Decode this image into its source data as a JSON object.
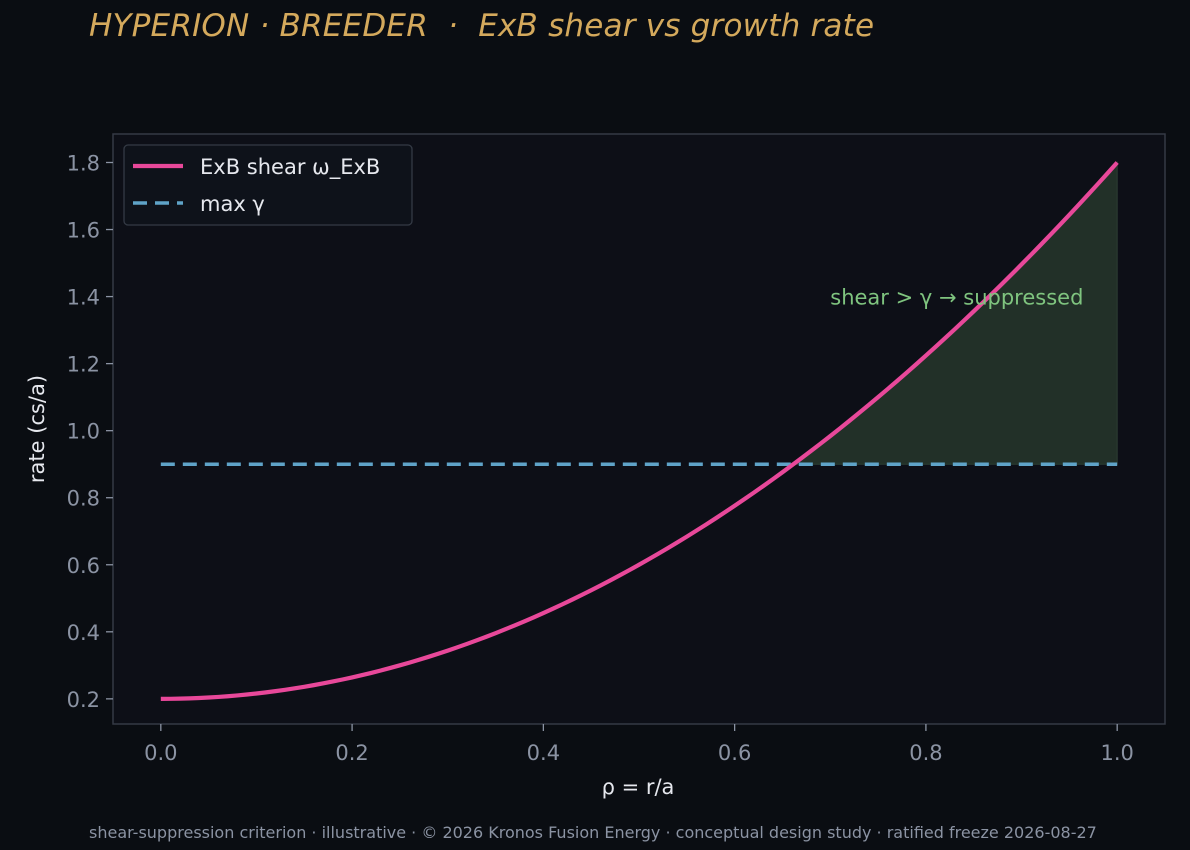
{
  "title": "HYPERION · BREEDER  ·  ExB shear vs growth rate",
  "footer": "shear-suppression criterion · illustrative · © 2026 Kronos Fusion Energy · conceptual design study · ratified freeze 2026-08-27",
  "chart_data": {
    "type": "line",
    "xlabel": "ρ = r/a",
    "ylabel": "rate  (cs/a)",
    "xlim": [
      -0.05,
      1.05
    ],
    "ylim": [
      0.125,
      1.885
    ],
    "xticks": [
      0.0,
      0.2,
      0.4,
      0.6,
      0.8,
      1.0
    ],
    "xtick_labels": [
      "0.0",
      "0.2",
      "0.4",
      "0.6",
      "0.8",
      "1.0"
    ],
    "yticks": [
      0.2,
      0.4,
      0.6,
      0.8,
      1.0,
      1.2,
      1.4,
      1.6,
      1.8
    ],
    "ytick_labels": [
      "0.2",
      "0.4",
      "0.6",
      "0.8",
      "1.0",
      "1.2",
      "1.4",
      "1.6",
      "1.8"
    ],
    "grid": false,
    "legend_position": "top-left",
    "series": [
      {
        "name": "ExB shear ω_ExB",
        "color": "#e8489a",
        "style": "solid",
        "x": [
          0.0,
          0.05,
          0.1,
          0.15,
          0.2,
          0.25,
          0.3,
          0.35,
          0.4,
          0.45,
          0.5,
          0.55,
          0.6,
          0.65,
          0.7,
          0.75,
          0.8,
          0.85,
          0.9,
          0.95,
          1.0
        ],
        "y": [
          0.2,
          0.204,
          0.216,
          0.236,
          0.264,
          0.3,
          0.344,
          0.396,
          0.456,
          0.524,
          0.6,
          0.684,
          0.776,
          0.876,
          0.984,
          1.1,
          1.224,
          1.356,
          1.496,
          1.644,
          1.8
        ]
      },
      {
        "name": "max γ",
        "color": "#5fa3c8",
        "style": "dashed",
        "x": [
          0.0,
          1.0
        ],
        "y": [
          0.9,
          0.9
        ]
      }
    ],
    "fill_region": {
      "between": [
        "ExB shear ω_ExB",
        "max γ"
      ],
      "where": "shear > max γ",
      "color": "#223028"
    },
    "annotation": {
      "text": "shear > γ → suppressed",
      "x": 0.7,
      "y": 1.4,
      "color": "#7fc47f"
    }
  }
}
